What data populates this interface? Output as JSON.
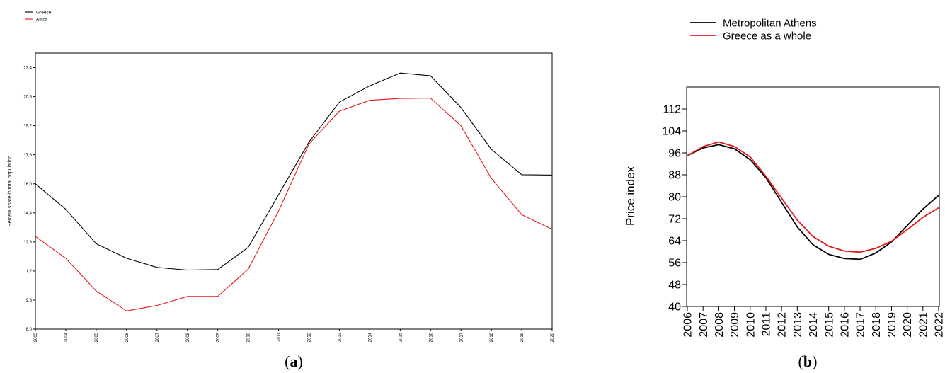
{
  "chart_data": [
    {
      "id": "a",
      "type": "line",
      "caption_open": "(",
      "caption_letter": "a",
      "caption_close": ")",
      "ylabel": "Percent share in total population",
      "ylim": [
        8.0,
        23.2
      ],
      "yticks": [
        "8,0",
        "9,6",
        "11,2",
        "12,8",
        "14,4",
        "16,0",
        "17,6",
        "19,2",
        "20,8",
        "22,4"
      ],
      "ytick_values": [
        8.0,
        9.6,
        11.2,
        12.8,
        14.4,
        16.0,
        17.6,
        19.2,
        20.8,
        22.4
      ],
      "x": [
        "2003",
        "2004",
        "2005",
        "2006",
        "2007",
        "2008",
        "2009",
        "2010",
        "2011",
        "2012",
        "2013",
        "2014",
        "2015",
        "2016",
        "2017",
        "2018",
        "2019",
        "2020"
      ],
      "legend_position": "top-left",
      "grid": false,
      "series": [
        {
          "name": "Greece",
          "color": "#000000",
          "values": [
            16.0,
            14.6,
            12.7,
            11.9,
            11.4,
            11.25,
            11.28,
            12.5,
            15.4,
            18.3,
            20.5,
            21.4,
            22.1,
            21.95,
            20.2,
            17.9,
            16.5,
            16.48
          ]
        },
        {
          "name": "Attica",
          "color": "#e31a1c",
          "values": [
            13.1,
            11.9,
            10.1,
            9.0,
            9.3,
            9.8,
            9.8,
            11.3,
            14.5,
            18.2,
            20.0,
            20.6,
            20.7,
            20.72,
            19.2,
            16.3,
            14.3,
            13.5
          ]
        }
      ]
    },
    {
      "id": "b",
      "type": "line",
      "caption_open": "(",
      "caption_letter": "b",
      "caption_close": ")",
      "ylabel": "Price index",
      "ylim": [
        40,
        120
      ],
      "yticks": [
        "40",
        "48",
        "56",
        "64",
        "72",
        "80",
        "88",
        "96",
        "104",
        "112"
      ],
      "ytick_values": [
        40,
        48,
        56,
        64,
        72,
        80,
        88,
        96,
        104,
        112
      ],
      "x": [
        "2006",
        "2007",
        "2008",
        "2009",
        "2010",
        "2011",
        "2012",
        "2013",
        "2014",
        "2015",
        "2016",
        "2017",
        "2018",
        "2019",
        "2020",
        "2021",
        "2022"
      ],
      "legend_position": "top",
      "grid": false,
      "series": [
        {
          "name": "Metropolitan Athens",
          "color": "#000000",
          "values": [
            95.0,
            97.8,
            99.0,
            97.5,
            93.5,
            87.0,
            78.0,
            69.0,
            62.5,
            59.0,
            57.5,
            57.2,
            59.5,
            63.5,
            69.5,
            75.5,
            80.5
          ]
        },
        {
          "name": "Greece as a whole",
          "color": "#e31a1c",
          "values": [
            95.0,
            98.3,
            100.0,
            98.3,
            94.5,
            87.5,
            79.5,
            71.5,
            65.5,
            62.0,
            60.2,
            59.8,
            61.2,
            63.8,
            68.0,
            72.5,
            76.0
          ]
        }
      ]
    }
  ]
}
